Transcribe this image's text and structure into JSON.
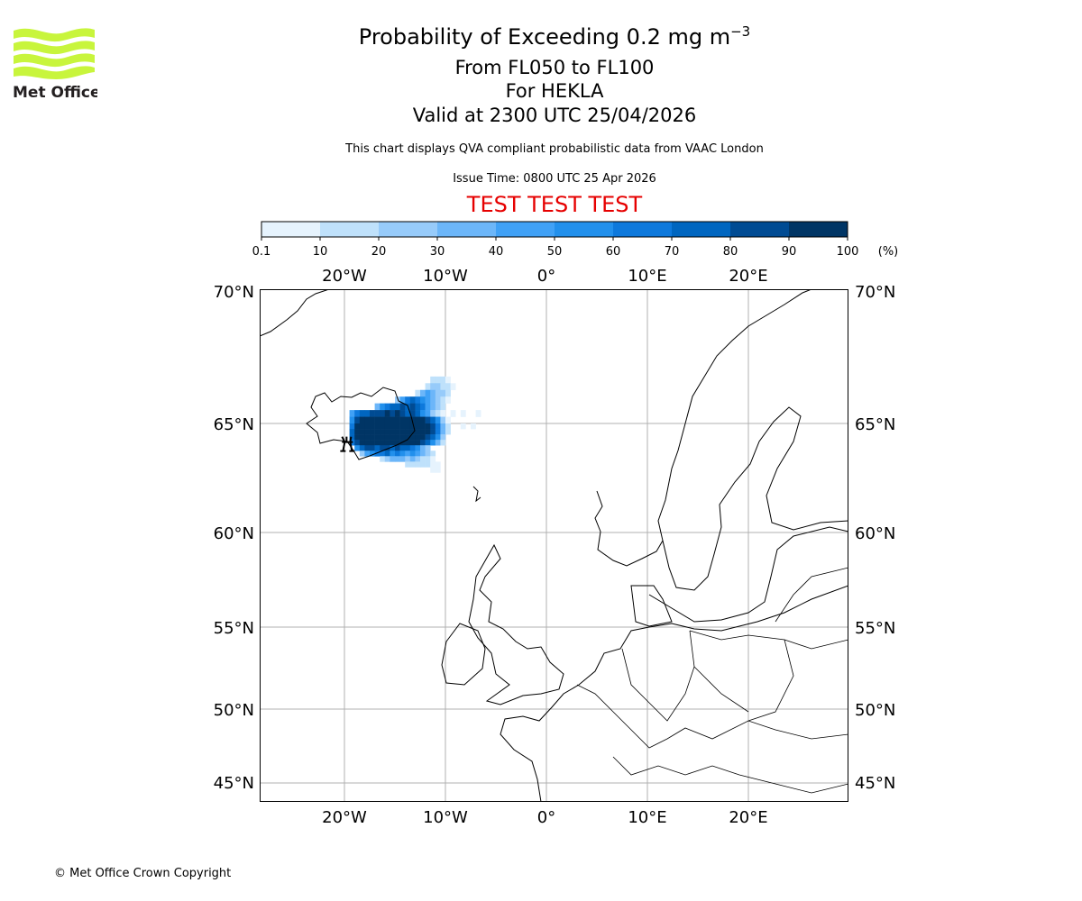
{
  "header": {
    "title": "Probability of Exceeding 0.2 mg m",
    "title_sup": "−3",
    "level": "From FL050 to FL100",
    "volcano": "For HEKLA",
    "valid": "Valid at 2300 UTC 25/04/2026",
    "note": "This chart displays QVA compliant probabilistic data from VAAC London",
    "issue": "Issue Time: 0800 UTC 25 Apr 2026",
    "test": "TEST TEST TEST"
  },
  "logo": {
    "text": "Met Office",
    "color": "#c8f53c"
  },
  "footer": {
    "copyright": "© Met Office Crown Copyright"
  },
  "chart_data": {
    "type": "heatmap",
    "title": "Probability of Exceeding 0.2 mg m−3",
    "colorbar": {
      "ticks": [
        "0.1",
        "10",
        "20",
        "30",
        "40",
        "50",
        "60",
        "70",
        "80",
        "90",
        "100"
      ],
      "unit": "(%)",
      "colors": [
        "#e6f3fd",
        "#bfe1fb",
        "#97cbfa",
        "#6cb6f9",
        "#40a1f6",
        "#2290ec",
        "#0e79dc",
        "#0066c0",
        "#004b93",
        "#003565"
      ]
    },
    "lon_ticks": [
      {
        "v": -20,
        "label": "20°W"
      },
      {
        "v": -10,
        "label": "10°W"
      },
      {
        "v": 0,
        "label": "0°"
      },
      {
        "v": 10,
        "label": "10°E"
      },
      {
        "v": 20,
        "label": "20°E"
      }
    ],
    "lat_ticks": [
      {
        "v": 70,
        "label": "70°N"
      },
      {
        "v": 65,
        "label": "65°N"
      },
      {
        "v": 60,
        "label": "60°N"
      },
      {
        "v": 55,
        "label": "55°N"
      },
      {
        "v": 50,
        "label": "50°N"
      },
      {
        "v": 45,
        "label": "45°N"
      }
    ],
    "grid": true,
    "volcano": {
      "name": "HEKLA",
      "lon": -19.7,
      "lat": 63.98
    },
    "cell_size": {
      "dlon": 0.5,
      "dlat": 0.25
    },
    "rows": [
      {
        "lat": 66.5,
        "lon0": -11.5,
        "p": [
          15,
          15,
          15,
          5
        ]
      },
      {
        "lat": 66.25,
        "lon0": -12,
        "p": [
          15,
          25,
          25,
          15,
          15,
          5
        ]
      },
      {
        "lat": 66.0,
        "lon0": -13,
        "p": [
          15,
          35,
          45,
          35,
          25,
          25,
          15
        ]
      },
      {
        "lat": 65.75,
        "lon0": -15,
        "p": [
          25,
          45,
          65,
          75,
          65,
          55,
          45,
          35,
          25,
          15,
          5
        ]
      },
      {
        "lat": 65.5,
        "lon0": -17,
        "p": [
          35,
          55,
          65,
          75,
          75,
          85,
          75,
          85,
          75,
          65,
          45,
          35,
          25,
          15
        ]
      },
      {
        "lat": 65.25,
        "lon0": -19.5,
        "p": [
          45,
          65,
          75,
          75,
          85,
          85,
          85,
          95,
          85,
          95,
          85,
          75,
          85,
          75,
          55,
          45,
          25,
          15,
          5,
          0,
          5,
          0,
          5,
          0,
          0,
          5
        ]
      },
      {
        "lat": 65.0,
        "lon0": -19.5,
        "p": [
          55,
          85,
          95,
          95,
          95,
          95,
          95,
          95,
          95,
          95,
          95,
          95,
          95,
          95,
          95,
          85,
          75,
          55,
          25,
          5
        ]
      },
      {
        "lat": 64.75,
        "lon0": -19.5,
        "p": [
          65,
          95,
          95,
          95,
          95,
          95,
          95,
          95,
          95,
          95,
          95,
          95,
          95,
          95,
          95,
          95,
          85,
          65,
          35,
          15,
          0,
          0,
          5,
          0,
          5
        ]
      },
      {
        "lat": 64.5,
        "lon0": -19.5,
        "p": [
          75,
          95,
          95,
          95,
          95,
          95,
          95,
          95,
          95,
          95,
          95,
          95,
          95,
          95,
          95,
          95,
          85,
          65,
          35,
          15
        ]
      },
      {
        "lat": 64.25,
        "lon0": -19.5,
        "p": [
          75,
          95,
          95,
          95,
          95,
          95,
          95,
          95,
          95,
          95,
          95,
          95,
          95,
          95,
          95,
          85,
          75,
          55,
          25
        ]
      },
      {
        "lat": 64.0,
        "lon0": -19.5,
        "p": [
          65,
          85,
          95,
          95,
          95,
          95,
          95,
          95,
          95,
          95,
          95,
          95,
          95,
          95,
          85,
          75,
          55,
          35,
          15
        ]
      },
      {
        "lat": 63.75,
        "lon0": -19,
        "p": [
          55,
          75,
          85,
          85,
          75,
          85,
          85,
          75,
          85,
          75,
          75,
          65,
          55,
          35,
          25
        ]
      },
      {
        "lat": 63.5,
        "lon0": -18.5,
        "p": [
          25,
          45,
          55,
          65,
          65,
          75,
          55,
          65,
          55,
          45,
          55,
          45,
          35,
          25,
          15
        ]
      },
      {
        "lat": 63.25,
        "lon0": -16.5,
        "p": [
          15,
          25,
          35,
          35,
          35,
          25,
          35,
          25,
          15,
          15,
          5
        ]
      },
      {
        "lat": 63.0,
        "lon0": -14,
        "p": [
          15,
          15,
          15,
          15,
          15,
          5,
          5
        ]
      },
      {
        "lat": 62.75,
        "lon0": -11.5,
        "p": [
          5,
          5
        ]
      }
    ]
  }
}
